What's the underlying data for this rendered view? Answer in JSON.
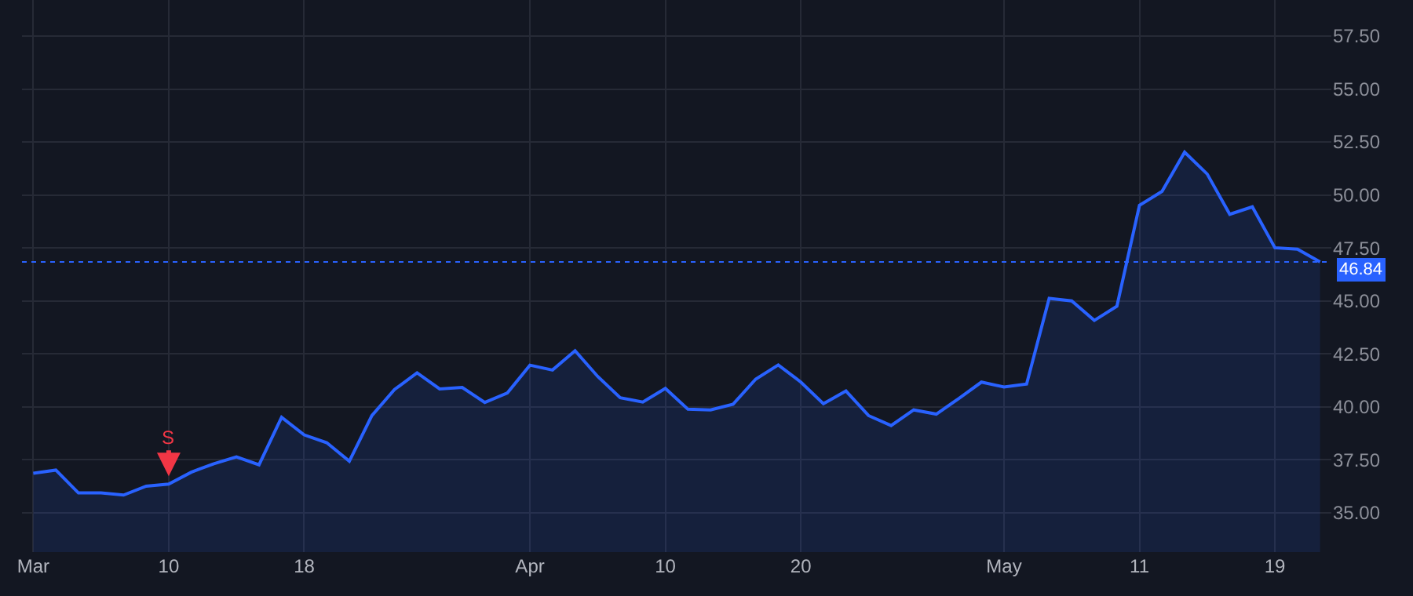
{
  "chart_data": {
    "type": "area",
    "categories": [
      "Mar",
      null,
      null,
      null,
      null,
      null,
      "10",
      null,
      null,
      null,
      null,
      null,
      "18",
      null,
      null,
      null,
      null,
      null,
      null,
      null,
      null,
      null,
      "Apr",
      null,
      null,
      null,
      null,
      null,
      "10",
      null,
      null,
      null,
      null,
      null,
      "20",
      null,
      null,
      null,
      null,
      null,
      null,
      null,
      null,
      "May",
      null,
      null,
      null,
      null,
      null,
      "11",
      null,
      null,
      null,
      null,
      null,
      "19",
      null,
      null
    ],
    "series": [
      {
        "color": "#2962ff",
        "values": [
          36.87,
          37.02,
          35.94,
          35.94,
          35.84,
          36.26,
          36.36,
          36.92,
          37.32,
          37.64,
          37.27,
          39.51,
          38.68,
          38.31,
          37.44,
          39.59,
          40.82,
          41.61,
          40.85,
          40.92,
          40.21,
          40.66,
          41.97,
          41.74,
          42.65,
          41.44,
          40.43,
          40.23,
          40.87,
          39.89,
          39.86,
          40.13,
          41.31,
          41.98,
          41.17,
          40.15,
          40.75,
          39.59,
          39.12,
          39.86,
          39.66,
          40.4,
          41.17,
          40.94,
          41.08,
          45.12,
          45.0,
          44.08,
          44.75,
          49.51,
          50.17,
          52.02,
          50.99,
          49.09,
          49.44,
          47.51,
          47.44,
          46.84
        ]
      }
    ],
    "ylim": [
      33.15,
      59.2
    ],
    "yticks": [
      {
        "value": 35,
        "label": "35.00"
      },
      {
        "value": 37.5,
        "label": "37.50"
      },
      {
        "value": 40,
        "label": "40.00"
      },
      {
        "value": 42.5,
        "label": "42.50"
      },
      {
        "value": 45,
        "label": "45.00"
      },
      {
        "value": 47.5,
        "label": "47.50"
      },
      {
        "value": 50,
        "label": "50.00"
      },
      {
        "value": 52.5,
        "label": "52.50"
      },
      {
        "value": 55,
        "label": "55.00"
      },
      {
        "value": 57.5,
        "label": "57.50"
      }
    ],
    "grid": true,
    "ref_lines": [
      {
        "axis": "y",
        "value": 46.84,
        "label": "46.84",
        "color": "#2962ff",
        "line_style": "dotted"
      }
    ],
    "annotations": [
      {
        "text": "S",
        "x": "10",
        "y": 36.36
      }
    ]
  }
}
